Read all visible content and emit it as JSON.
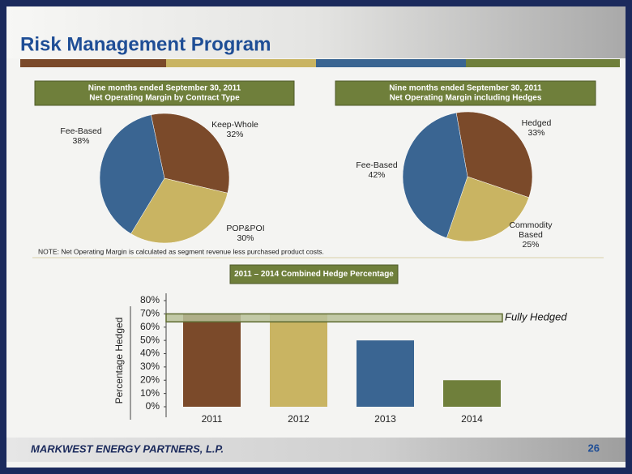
{
  "header": {
    "title": "Risk Management Program"
  },
  "note": "NOTE: Net Operating Margin is calculated as segment revenue less purchased product costs.",
  "footer": {
    "company": "MARKWEST ENERGY PARTNERS, L.P.",
    "page": "26"
  },
  "chart_data": [
    {
      "type": "pie",
      "title": "Nine months ended September 30, 2011",
      "subtitle": "Net Operating Margin by Contract Type",
      "categories": [
        "Keep-Whole",
        "POP&POI",
        "Fee-Based"
      ],
      "values": [
        32,
        30,
        38
      ],
      "value_labels": [
        "32%",
        "30%",
        "38%"
      ],
      "colors": [
        "#7b4a2a",
        "#c9b462",
        "#3a6592"
      ]
    },
    {
      "type": "pie",
      "title": "Nine months ended September 30, 2011",
      "subtitle": "Net Operating Margin including Hedges",
      "categories": [
        "Hedged",
        "Commodity Based",
        "Fee-Based"
      ],
      "values": [
        33,
        25,
        42
      ],
      "value_labels": [
        "33%",
        "25%",
        "42%"
      ],
      "colors": [
        "#7b4a2a",
        "#c9b462",
        "#3a6592"
      ]
    },
    {
      "type": "bar",
      "title": "2011 – 2014 Combined Hedge Percentage",
      "y_label": "Percentage Hedged",
      "categories": [
        "2011",
        "2012",
        "2013",
        "2014"
      ],
      "values": [
        70,
        70,
        50,
        20
      ],
      "colors": [
        "#7b4a2a",
        "#c9b462",
        "#3a6592",
        "#6f7f3b"
      ],
      "ylim": [
        0,
        80
      ],
      "yticks": [
        {
          "value": 0,
          "label": "0%"
        },
        {
          "value": 10,
          "label": "10%"
        },
        {
          "value": 20,
          "label": "20%"
        },
        {
          "value": 30,
          "label": "30%"
        },
        {
          "value": 40,
          "label": "40%"
        },
        {
          "value": 50,
          "label": "50%"
        },
        {
          "value": 60,
          "label": "60%"
        },
        {
          "value": 70,
          "label": "70%"
        },
        {
          "value": 80,
          "label": "80%"
        }
      ],
      "annotations": [
        {
          "label": "Fully Hedged",
          "y_range": [
            64,
            70
          ]
        }
      ]
    }
  ]
}
